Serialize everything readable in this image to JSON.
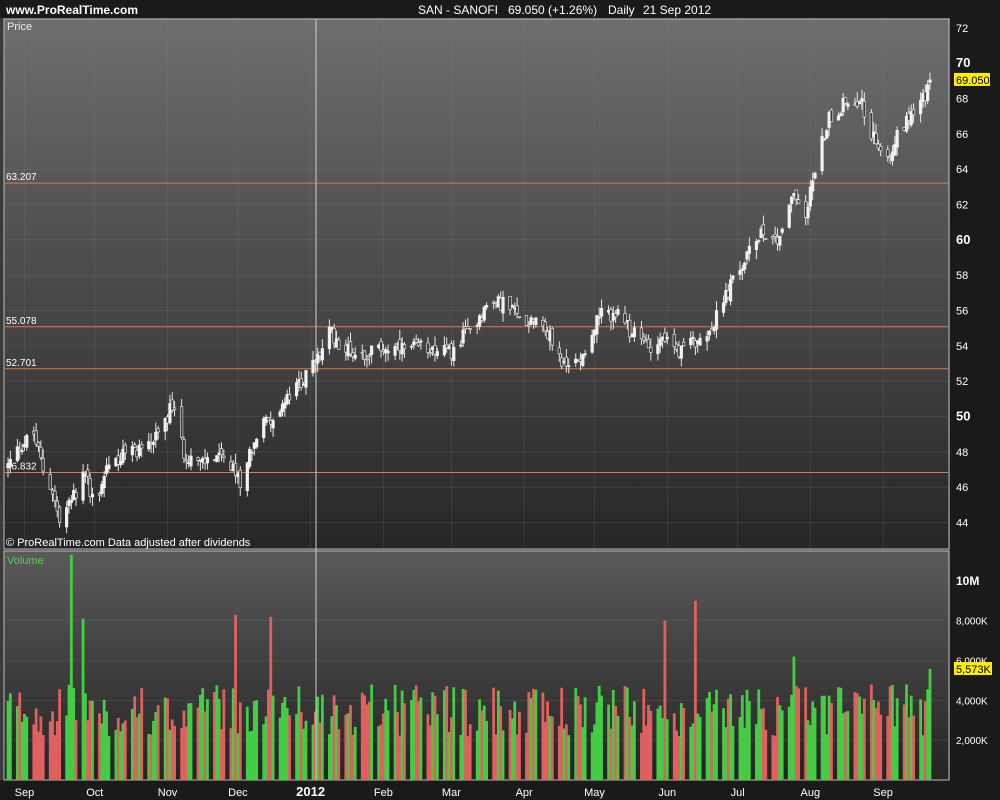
{
  "header": {
    "site": "www.ProRealTime.com",
    "instrument": "SAN - SANOFI",
    "quote": "69.050 (+1.26%)",
    "period": "Daily",
    "date": "21 Sep 2012"
  },
  "price_panel": {
    "label": "Price",
    "footer_note": "© ProRealTime.com  Data adjusted after dividends",
    "current_price_label": "69.050",
    "current_price": 69.05,
    "ylim": [
      42.5,
      72.5
    ],
    "y_ticks": [
      44,
      46,
      48,
      50,
      52,
      54,
      56,
      58,
      60,
      62,
      64,
      66,
      68,
      70,
      72
    ],
    "y_tick_labels": [
      "44",
      "46",
      "48",
      "50",
      "52",
      "54",
      "56",
      "58",
      "60",
      "62",
      "64",
      "66",
      "68",
      "70",
      "72"
    ],
    "y_bold_ticks": [
      50,
      60,
      70
    ],
    "horizontal_lines": [
      {
        "value": 63.207,
        "label": "63.207"
      },
      {
        "value": 55.078,
        "label": "55.078"
      },
      {
        "value": 52.701,
        "label": "52.701"
      },
      {
        "value": 46.832,
        "label": "46.832"
      }
    ]
  },
  "volume_panel": {
    "label": "Volume",
    "ylim": [
      0,
      11500000
    ],
    "y_ticks": [
      2000000,
      4000000,
      6000000,
      8000000,
      10000000
    ],
    "y_tick_labels": [
      "2,000K",
      "4,000K",
      "6,000K",
      "8,000K",
      "10M"
    ],
    "current_volume_label": "5,573K",
    "current_volume": 5573000
  },
  "x_axis": {
    "months": [
      {
        "label": "Sep",
        "date": "2011-09-01"
      },
      {
        "label": "Oct",
        "date": "2011-10-01"
      },
      {
        "label": "Nov",
        "date": "2011-11-01"
      },
      {
        "label": "Dec",
        "date": "2011-12-01"
      },
      {
        "label": "2012",
        "date": "2012-01-01",
        "bold": true
      },
      {
        "label": "Feb",
        "date": "2012-02-01"
      },
      {
        "label": "Mar",
        "date": "2012-03-01"
      },
      {
        "label": "Apr",
        "date": "2012-04-01"
      },
      {
        "label": "May",
        "date": "2012-05-01"
      },
      {
        "label": "Jun",
        "date": "2012-06-01"
      },
      {
        "label": "Jul",
        "date": "2012-07-01"
      },
      {
        "label": "Aug",
        "date": "2012-08-01"
      },
      {
        "label": "Sep",
        "date": "2012-09-01"
      }
    ]
  },
  "colors": {
    "up": "#44cc44",
    "down": "#e06060",
    "level_line": "#e07840",
    "highlight": "#ffee00",
    "volume_label": "#55cc55"
  },
  "chart_data": {
    "type": "candlestick",
    "title": "SAN - SANOFI  69.050 (+1.26%)  Daily  21 Sep 2012",
    "xlabel": "",
    "ylabel": "Price",
    "x_start": "2011-08-25",
    "x_end": "2012-09-21",
    "ylim": [
      42.5,
      72.5
    ],
    "grid": true,
    "series": [
      {
        "name": "Price",
        "anchors": [
          [
            "2011-08-25",
            47.2
          ],
          [
            "2011-08-30",
            48.3
          ],
          [
            "2011-09-05",
            49.0
          ],
          [
            "2011-09-09",
            47.0
          ],
          [
            "2011-09-13",
            45.8
          ],
          [
            "2011-09-16",
            44.0
          ],
          [
            "2011-09-22",
            45.5
          ],
          [
            "2011-09-27",
            46.8
          ],
          [
            "2011-10-01",
            45.0
          ],
          [
            "2011-10-06",
            47.2
          ],
          [
            "2011-10-13",
            47.8
          ],
          [
            "2011-10-20",
            48.2
          ],
          [
            "2011-10-27",
            48.7
          ],
          [
            "2011-11-03",
            50.6
          ],
          [
            "2011-11-08",
            48.0
          ],
          [
            "2011-11-15",
            47.3
          ],
          [
            "2011-11-22",
            47.8
          ],
          [
            "2011-11-28",
            47.0
          ],
          [
            "2011-12-02",
            46.4
          ],
          [
            "2011-12-06",
            48.0
          ],
          [
            "2011-12-12",
            49.6
          ],
          [
            "2011-12-19",
            50.4
          ],
          [
            "2011-12-27",
            51.8
          ],
          [
            "2012-01-03",
            53.0
          ],
          [
            "2012-01-09",
            54.8
          ],
          [
            "2012-01-16",
            53.8
          ],
          [
            "2012-01-23",
            53.5
          ],
          [
            "2012-02-01",
            53.9
          ],
          [
            "2012-02-10",
            53.7
          ],
          [
            "2012-02-20",
            54.0
          ],
          [
            "2012-03-01",
            53.6
          ],
          [
            "2012-03-09",
            55.0
          ],
          [
            "2012-03-16",
            56.2
          ],
          [
            "2012-03-23",
            56.5
          ],
          [
            "2012-04-01",
            55.3
          ],
          [
            "2012-04-06",
            55.8
          ],
          [
            "2012-04-12",
            54.5
          ],
          [
            "2012-04-19",
            52.6
          ],
          [
            "2012-04-26",
            53.6
          ],
          [
            "2012-05-03",
            55.7
          ],
          [
            "2012-05-10",
            55.8
          ],
          [
            "2012-05-17",
            54.7
          ],
          [
            "2012-05-24",
            54.0
          ],
          [
            "2012-06-01",
            54.6
          ],
          [
            "2012-06-06",
            53.5
          ],
          [
            "2012-06-14",
            54.4
          ],
          [
            "2012-06-21",
            55.3
          ],
          [
            "2012-06-28",
            57.4
          ],
          [
            "2012-07-05",
            59.0
          ],
          [
            "2012-07-11",
            60.6
          ],
          [
            "2012-07-18",
            60.0
          ],
          [
            "2012-07-25",
            62.8
          ],
          [
            "2012-07-30",
            61.5
          ],
          [
            "2012-08-03",
            64.0
          ],
          [
            "2012-08-09",
            67.0
          ],
          [
            "2012-08-16",
            67.8
          ],
          [
            "2012-08-22",
            68.0
          ],
          [
            "2012-08-28",
            65.7
          ],
          [
            "2012-09-04",
            65.0
          ],
          [
            "2012-09-10",
            66.6
          ],
          [
            "2012-09-14",
            67.5
          ],
          [
            "2012-09-19",
            68.2
          ],
          [
            "2012-09-21",
            69.05
          ]
        ]
      },
      {
        "name": "Volume",
        "tall_bars": [
          [
            "2011-09-21",
            11300000
          ],
          [
            "2011-09-26",
            8100000
          ],
          [
            "2011-11-30",
            8300000
          ],
          [
            "2011-12-15",
            8200000
          ],
          [
            "2012-05-31",
            8000000
          ],
          [
            "2012-06-13",
            9000000
          ],
          [
            "2012-07-25",
            6200000
          ],
          [
            "2012-09-21",
            5573000
          ]
        ]
      }
    ]
  }
}
